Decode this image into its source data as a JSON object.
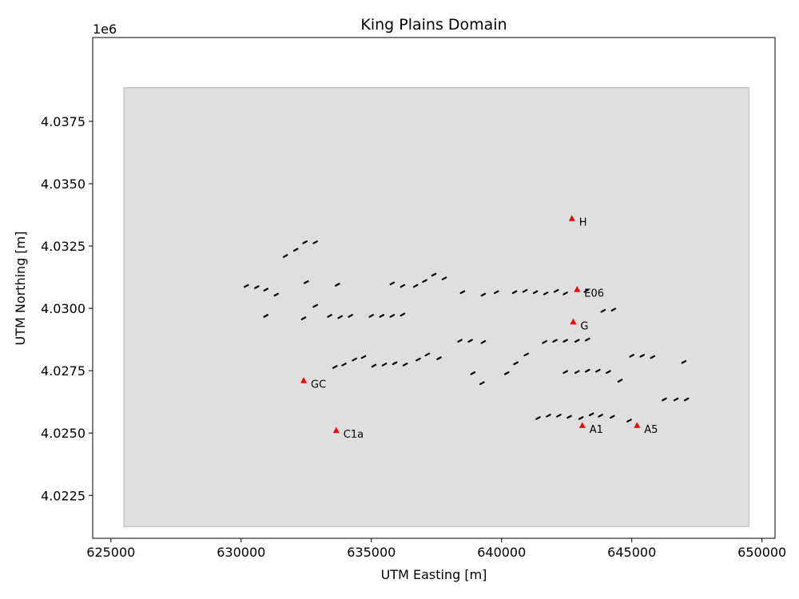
{
  "chart_data": {
    "type": "scatter",
    "title": "King Plains Domain",
    "xlabel": "UTM Easting [m]",
    "ylabel": "UTM Northing [m]",
    "y_offset_label": "1e6",
    "xlim": [
      624300,
      650500
    ],
    "ylim": [
      4020780,
      4040860
    ],
    "x_ticks": [
      625000,
      630000,
      635000,
      640000,
      645000,
      650000
    ],
    "x_tick_labels": [
      "625000",
      "630000",
      "635000",
      "640000",
      "645000",
      "650000"
    ],
    "y_ticks": [
      4022500,
      4025000,
      4027500,
      4030000,
      4032500,
      4035000,
      4037500
    ],
    "y_tick_labels": [
      "4.0225",
      "4.0250",
      "4.0275",
      "4.0300",
      "4.0325",
      "4.0350",
      "4.0375"
    ],
    "grid": false,
    "domain_box": {
      "x_min": 625500,
      "x_max": 649500,
      "y_min": 4021250,
      "y_max": 4038850,
      "fill": "#dfdfdf",
      "edge": "#c8c8c8"
    },
    "stations": {
      "color": "#ff0000",
      "points": [
        {
          "name": "H",
          "x": 642700,
          "y": 4033600
        },
        {
          "name": "E06",
          "x": 642900,
          "y": 4030750
        },
        {
          "name": "G",
          "x": 642750,
          "y": 4029450
        },
        {
          "name": "GC",
          "x": 632400,
          "y": 4027100
        },
        {
          "name": "C1a",
          "x": 633650,
          "y": 4025100
        },
        {
          "name": "A1",
          "x": 643100,
          "y": 4025300
        },
        {
          "name": "A5",
          "x": 645200,
          "y": 4025300
        }
      ]
    },
    "turbines": {
      "color": "#000000",
      "points": [
        [
          631700,
          4032100
        ],
        [
          632100,
          4032350
        ],
        [
          632450,
          4032650
        ],
        [
          632850,
          4032650
        ],
        [
          630200,
          4030900
        ],
        [
          630600,
          4030850
        ],
        [
          630950,
          4030750
        ],
        [
          631350,
          4030550
        ],
        [
          632500,
          4031050
        ],
        [
          633700,
          4030950
        ],
        [
          630950,
          4029700
        ],
        [
          632400,
          4029600
        ],
        [
          632850,
          4030100
        ],
        [
          633400,
          4029700
        ],
        [
          633800,
          4029650
        ],
        [
          634200,
          4029700
        ],
        [
          635000,
          4029700
        ],
        [
          635400,
          4029700
        ],
        [
          635800,
          4029700
        ],
        [
          636200,
          4029750
        ],
        [
          635800,
          4031000
        ],
        [
          636200,
          4030900
        ],
        [
          636700,
          4030900
        ],
        [
          637050,
          4031100
        ],
        [
          637400,
          4031350
        ],
        [
          637800,
          4031200
        ],
        [
          638500,
          4030650
        ],
        [
          639300,
          4030550
        ],
        [
          639800,
          4030650
        ],
        [
          640500,
          4030650
        ],
        [
          640900,
          4030700
        ],
        [
          641300,
          4030650
        ],
        [
          641700,
          4030600
        ],
        [
          642100,
          4030700
        ],
        [
          642450,
          4030600
        ],
        [
          643250,
          4030700
        ],
        [
          643900,
          4029900
        ],
        [
          644300,
          4029950
        ],
        [
          638400,
          4028700
        ],
        [
          638800,
          4028700
        ],
        [
          639300,
          4028650
        ],
        [
          641650,
          4028650
        ],
        [
          642050,
          4028700
        ],
        [
          642450,
          4028700
        ],
        [
          642900,
          4028700
        ],
        [
          643300,
          4028750
        ],
        [
          633600,
          4027650
        ],
        [
          633950,
          4027750
        ],
        [
          634350,
          4027950
        ],
        [
          634700,
          4028050
        ],
        [
          635100,
          4027700
        ],
        [
          635500,
          4027750
        ],
        [
          635900,
          4027800
        ],
        [
          636300,
          4027750
        ],
        [
          636800,
          4027950
        ],
        [
          637150,
          4028150
        ],
        [
          637600,
          4028000
        ],
        [
          638900,
          4027400
        ],
        [
          639250,
          4027000
        ],
        [
          640200,
          4027400
        ],
        [
          640550,
          4027800
        ],
        [
          640950,
          4028150
        ],
        [
          642450,
          4027450
        ],
        [
          642900,
          4027450
        ],
        [
          643300,
          4027500
        ],
        [
          643700,
          4027500
        ],
        [
          644100,
          4027450
        ],
        [
          644550,
          4027100
        ],
        [
          645000,
          4028100
        ],
        [
          645400,
          4028100
        ],
        [
          645800,
          4028050
        ],
        [
          647000,
          4027850
        ],
        [
          646250,
          4026350
        ],
        [
          646700,
          4026350
        ],
        [
          647100,
          4026350
        ],
        [
          641400,
          4025600
        ],
        [
          641800,
          4025700
        ],
        [
          642200,
          4025700
        ],
        [
          642600,
          4025650
        ],
        [
          643050,
          4025600
        ],
        [
          643450,
          4025750
        ],
        [
          643800,
          4025700
        ],
        [
          644250,
          4025650
        ],
        [
          644900,
          4025500
        ]
      ]
    }
  }
}
